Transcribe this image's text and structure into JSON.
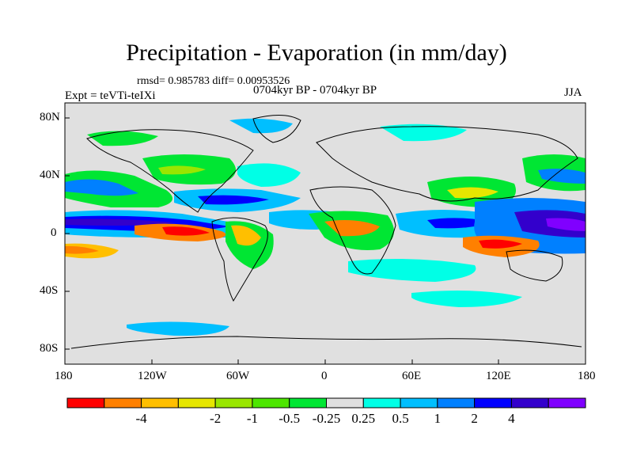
{
  "title": "Precipitation - Evaporation (in mm/day)",
  "stats": "rmsd= 0.985783 diff= 0.00953526",
  "period_label": "0704kyr BP - 0704kyr BP",
  "experiment_label": "Expt = teVTi-teIXi",
  "season_label": "JJA",
  "lat_labels": [
    "80N",
    "40N",
    "0",
    "40S",
    "80S"
  ],
  "lon_labels": [
    "180",
    "120W",
    "60W",
    "0",
    "60E",
    "120E",
    "180"
  ],
  "colorbar": {
    "colors": [
      "#ff0000",
      "#ff8000",
      "#ffbf00",
      "#e6e600",
      "#99e600",
      "#4de600",
      "#00e633",
      "#e0e0e0",
      "#00ffe6",
      "#00bfff",
      "#0080ff",
      "#0000ff",
      "#3300cc",
      "#8000ff"
    ],
    "labels": [
      "-4",
      "-2",
      "-1",
      "-0.5",
      "-0.25",
      "0.25",
      "0.5",
      "1",
      "2",
      "4"
    ]
  },
  "map_colors": {
    "background": "#e0e0e0",
    "coast": "#000000",
    "neg_strong": "#ff0000",
    "neg_med": "#ff8000",
    "neg_light": "#ffbf00",
    "neg_yellow": "#e6e600",
    "neg_lime": "#99e600",
    "neg_green": "#00e633",
    "pos_cyan": "#00ffe6",
    "pos_sky": "#00bfff",
    "pos_blue": "#0080ff",
    "pos_dark": "#0000ff",
    "pos_navy": "#3300cc",
    "pos_purple": "#8000ff"
  }
}
